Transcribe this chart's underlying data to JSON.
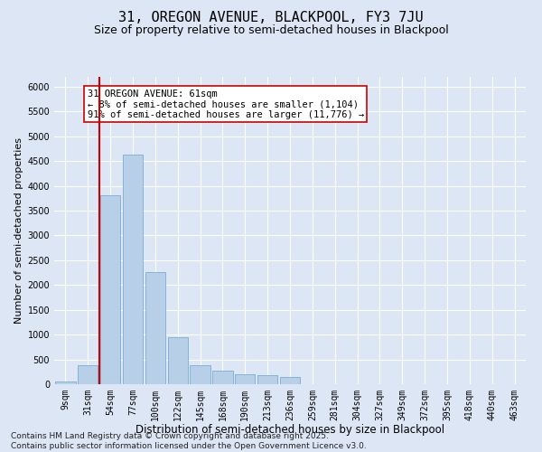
{
  "title": "31, OREGON AVENUE, BLACKPOOL, FY3 7JU",
  "subtitle": "Size of property relative to semi-detached houses in Blackpool",
  "xlabel": "Distribution of semi-detached houses by size in Blackpool",
  "ylabel": "Number of semi-detached properties",
  "categories": [
    "9sqm",
    "31sqm",
    "54sqm",
    "77sqm",
    "100sqm",
    "122sqm",
    "145sqm",
    "168sqm",
    "190sqm",
    "213sqm",
    "236sqm",
    "259sqm",
    "281sqm",
    "304sqm",
    "327sqm",
    "349sqm",
    "372sqm",
    "395sqm",
    "418sqm",
    "440sqm",
    "463sqm"
  ],
  "values": [
    50,
    390,
    3820,
    4630,
    2260,
    950,
    380,
    280,
    195,
    175,
    155,
    0,
    0,
    0,
    0,
    0,
    0,
    0,
    0,
    0,
    0
  ],
  "bar_color": "#b8cfe8",
  "bar_edge_color": "#7aadd4",
  "vline_color": "#cc0000",
  "annotation_text": "31 OREGON AVENUE: 61sqm\n← 8% of semi-detached houses are smaller (1,104)\n91% of semi-detached houses are larger (11,776) →",
  "annotation_box_facecolor": "#ffffff",
  "annotation_box_edgecolor": "#cc0000",
  "ylim": [
    0,
    6200
  ],
  "yticks": [
    0,
    500,
    1000,
    1500,
    2000,
    2500,
    3000,
    3500,
    4000,
    4500,
    5000,
    5500,
    6000
  ],
  "background_color": "#dce6f5",
  "grid_color": "#ffffff",
  "footer_line1": "Contains HM Land Registry data © Crown copyright and database right 2025.",
  "footer_line2": "Contains public sector information licensed under the Open Government Licence v3.0.",
  "title_fontsize": 11,
  "subtitle_fontsize": 9,
  "xlabel_fontsize": 8.5,
  "ylabel_fontsize": 8,
  "tick_fontsize": 7,
  "annotation_fontsize": 7.5,
  "footer_fontsize": 6.5
}
